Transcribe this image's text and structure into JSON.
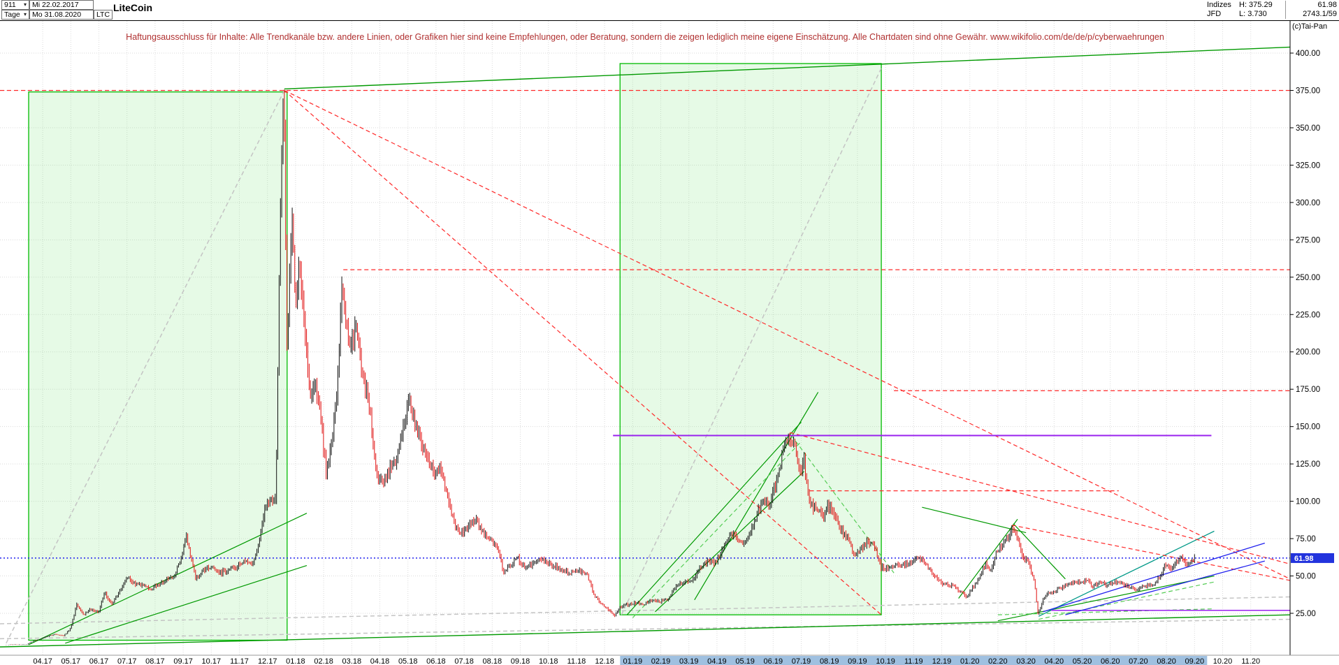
{
  "toolbar": {
    "bars_count": "911",
    "start_date": "Mi 22.02.2017",
    "period": "Tage",
    "end_date": "Mo 31.08.2020",
    "symbol": "LTC",
    "title": "LiteCoin"
  },
  "quote": {
    "exchange": "Indizes",
    "high": "H: 375.29",
    "last": "61.98",
    "broker": "JFD",
    "low": "L: 3.730",
    "volume": "2743.1/59"
  },
  "disclaimer": "Haftungsausschluss für Inhalte: Alle Trendkanäle bzw. andere Linien, oder Grafiken hier sind keine Empfehlungen, oder Beratung, sondern die zeigen lediglich meine eigene Einschätzung. Alle Chartdaten sind ohne Gewähr.   www.wikifolio.com/de/de/p/cyberwaehrungen",
  "copyright": "(c)Tai-Pan",
  "chart_data": {
    "type": "candlestick",
    "instrument": "LiteCoin",
    "x_unit": "months_since_2017-04",
    "xlim": [
      -1.52,
      44.4
    ],
    "data_range": [
      -1.3,
      41.0
    ],
    "bars": 911,
    "last_price": 61.98,
    "last_price_label": "61.98",
    "period_high": 375.29,
    "period_low": 3.73,
    "grid": true,
    "x_labels": [
      "04.17",
      "05.17",
      "06.17",
      "07.17",
      "08.17",
      "09.17",
      "10.17",
      "11.17",
      "12.17",
      "01.18",
      "02.18",
      "03.18",
      "04.18",
      "05.18",
      "06.18",
      "07.18",
      "08.18",
      "09.18",
      "10.18",
      "11.18",
      "12.18",
      "01.19",
      "02.19",
      "03.19",
      "04.19",
      "05.19",
      "06.19",
      "07.19",
      "08.19",
      "09.19",
      "10.19",
      "11.19",
      "12.19",
      "01.20",
      "02.20",
      "03.20",
      "04.20",
      "05.20",
      "06.20",
      "07.20",
      "08.20",
      "09.20",
      "10.20",
      "11.20"
    ],
    "x_highlight": {
      "start": "01.19",
      "end": "09.20"
    },
    "y_axis": {
      "ticks": [
        400,
        375,
        350,
        325,
        300,
        275,
        250,
        225,
        200,
        175,
        150,
        125,
        100,
        75,
        50,
        25
      ],
      "labels": [
        "400.00",
        "375.00",
        "350.00",
        "325.00",
        "300.00",
        "275.00",
        "250.00",
        "225.00",
        "200.00",
        "175.00",
        "150.00",
        "125.00",
        "100.00",
        "75.00",
        "50.00",
        "25.00"
      ]
    },
    "price_anchors": [
      [
        -1.3,
        3.8
      ],
      [
        -1.05,
        4.2
      ],
      [
        -0.8,
        4.0
      ],
      [
        -0.55,
        4.4
      ],
      [
        -0.3,
        6.8
      ],
      [
        -0.1,
        7.5
      ],
      [
        0.15,
        9.5
      ],
      [
        0.45,
        11
      ],
      [
        0.75,
        10
      ],
      [
        1.0,
        15
      ],
      [
        1.2,
        31
      ],
      [
        1.45,
        24
      ],
      [
        1.7,
        28
      ],
      [
        2.0,
        26
      ],
      [
        2.2,
        39
      ],
      [
        2.45,
        31
      ],
      [
        2.75,
        40
      ],
      [
        3.0,
        50
      ],
      [
        3.25,
        45
      ],
      [
        3.55,
        44
      ],
      [
        3.85,
        41
      ],
      [
        4.1,
        44
      ],
      [
        4.4,
        47
      ],
      [
        4.7,
        51
      ],
      [
        4.95,
        63
      ],
      [
        5.1,
        78
      ],
      [
        5.3,
        60
      ],
      [
        5.45,
        48
      ],
      [
        5.7,
        54
      ],
      [
        6.0,
        56
      ],
      [
        6.3,
        52
      ],
      [
        6.6,
        54
      ],
      [
        6.9,
        56
      ],
      [
        7.2,
        61
      ],
      [
        7.45,
        57
      ],
      [
        7.7,
        71
      ],
      [
        7.9,
        95
      ],
      [
        8.1,
        100
      ],
      [
        8.3,
        103
      ],
      [
        8.45,
        290
      ],
      [
        8.58,
        375
      ],
      [
        8.7,
        200
      ],
      [
        8.78,
        252
      ],
      [
        8.88,
        285
      ],
      [
        9.0,
        232
      ],
      [
        9.1,
        255
      ],
      [
        9.25,
        238
      ],
      [
        9.4,
        200
      ],
      [
        9.55,
        168
      ],
      [
        9.7,
        180
      ],
      [
        9.85,
        163
      ],
      [
        10.1,
        118
      ],
      [
        10.3,
        142
      ],
      [
        10.5,
        180
      ],
      [
        10.65,
        248
      ],
      [
        10.8,
        215
      ],
      [
        11.0,
        206
      ],
      [
        11.15,
        216
      ],
      [
        11.4,
        185
      ],
      [
        11.65,
        160
      ],
      [
        11.9,
        117
      ],
      [
        12.1,
        112
      ],
      [
        12.35,
        122
      ],
      [
        12.6,
        128
      ],
      [
        12.85,
        150
      ],
      [
        13.05,
        168
      ],
      [
        13.25,
        152
      ],
      [
        13.5,
        138
      ],
      [
        13.75,
        128
      ],
      [
        13.95,
        118
      ],
      [
        14.2,
        121
      ],
      [
        14.45,
        100
      ],
      [
        14.7,
        82
      ],
      [
        14.9,
        79
      ],
      [
        15.15,
        84
      ],
      [
        15.4,
        88
      ],
      [
        15.7,
        78
      ],
      [
        15.95,
        75
      ],
      [
        16.15,
        71
      ],
      [
        16.4,
        53
      ],
      [
        16.65,
        57
      ],
      [
        16.9,
        62
      ],
      [
        17.15,
        56
      ],
      [
        17.45,
        58
      ],
      [
        17.75,
        61
      ],
      [
        17.95,
        59
      ],
      [
        18.2,
        57
      ],
      [
        18.5,
        54
      ],
      [
        18.8,
        52
      ],
      [
        19.1,
        54
      ],
      [
        19.4,
        50
      ],
      [
        19.6,
        38
      ],
      [
        19.85,
        32
      ],
      [
        20.1,
        28
      ],
      [
        20.35,
        23.5
      ],
      [
        20.6,
        30
      ],
      [
        20.85,
        31
      ],
      [
        21.1,
        32
      ],
      [
        21.4,
        31
      ],
      [
        21.7,
        34
      ],
      [
        21.95,
        33
      ],
      [
        22.25,
        34
      ],
      [
        22.55,
        44
      ],
      [
        22.85,
        46
      ],
      [
        23.1,
        47
      ],
      [
        23.4,
        55
      ],
      [
        23.7,
        60
      ],
      [
        23.95,
        59
      ],
      [
        24.2,
        68
      ],
      [
        24.5,
        79
      ],
      [
        24.75,
        74
      ],
      [
        24.95,
        73
      ],
      [
        25.15,
        76
      ],
      [
        25.4,
        89
      ],
      [
        25.65,
        103
      ],
      [
        25.85,
        96
      ],
      [
        26.1,
        112
      ],
      [
        26.35,
        134
      ],
      [
        26.6,
        143
      ],
      [
        26.8,
        134
      ],
      [
        26.95,
        121
      ],
      [
        27.1,
        127
      ],
      [
        27.3,
        99
      ],
      [
        27.55,
        94
      ],
      [
        27.8,
        90
      ],
      [
        27.95,
        97
      ],
      [
        28.15,
        92
      ],
      [
        28.4,
        81
      ],
      [
        28.65,
        75
      ],
      [
        28.9,
        64
      ],
      [
        29.1,
        67
      ],
      [
        29.35,
        73
      ],
      [
        29.6,
        70
      ],
      [
        29.85,
        56
      ],
      [
        30.1,
        55
      ],
      [
        30.4,
        57
      ],
      [
        30.7,
        58
      ],
      [
        30.95,
        59
      ],
      [
        31.2,
        62
      ],
      [
        31.45,
        58
      ],
      [
        31.7,
        50
      ],
      [
        31.95,
        46
      ],
      [
        32.2,
        44
      ],
      [
        32.45,
        43
      ],
      [
        32.7,
        39
      ],
      [
        32.9,
        36
      ],
      [
        33.1,
        42
      ],
      [
        33.35,
        50
      ],
      [
        33.55,
        58
      ],
      [
        33.75,
        54
      ],
      [
        33.95,
        66
      ],
      [
        34.15,
        70
      ],
      [
        34.35,
        76
      ],
      [
        34.5,
        83
      ],
      [
        34.7,
        74
      ],
      [
        34.9,
        61
      ],
      [
        35.1,
        60
      ],
      [
        35.3,
        46
      ],
      [
        35.42,
        24
      ],
      [
        35.6,
        34
      ],
      [
        35.8,
        39
      ],
      [
        35.95,
        39
      ],
      [
        36.2,
        42
      ],
      [
        36.5,
        45
      ],
      [
        36.8,
        46
      ],
      [
        36.95,
        45
      ],
      [
        37.15,
        48
      ],
      [
        37.35,
        43
      ],
      [
        37.6,
        46
      ],
      [
        37.85,
        44
      ],
      [
        38.1,
        46
      ],
      [
        38.4,
        45
      ],
      [
        38.7,
        42
      ],
      [
        38.95,
        41
      ],
      [
        39.2,
        44
      ],
      [
        39.5,
        43
      ],
      [
        39.75,
        49
      ],
      [
        39.95,
        57
      ],
      [
        40.15,
        55
      ],
      [
        40.35,
        59
      ],
      [
        40.55,
        63
      ],
      [
        40.75,
        57
      ],
      [
        40.9,
        60
      ],
      [
        41.0,
        61.98
      ]
    ],
    "overlays": {
      "boxes": [
        {
          "x1": -0.5,
          "p1": 7,
          "x2": 8.7,
          "p2": 374
        },
        {
          "x1": 20.55,
          "p1": 24,
          "x2": 29.85,
          "p2": 393
        }
      ],
      "lines": [
        {
          "x1": -1.3,
          "p1": 5,
          "x2": 8.6,
          "p2": 375,
          "c": "gray",
          "d": "dash",
          "w": 1.5
        },
        {
          "x1": 20.6,
          "p1": 24,
          "x2": 29.85,
          "p2": 390,
          "c": "gray",
          "d": "dash",
          "w": 1.5
        },
        {
          "x1": -1.52,
          "p1": 18,
          "x2": 44.4,
          "p2": 36,
          "c": "gray",
          "d": "dash",
          "w": 1.5
        },
        {
          "x1": -1.52,
          "p1": 8,
          "x2": 44.4,
          "p2": 21,
          "c": "gray",
          "d": "dash",
          "w": 1.5
        },
        {
          "x1": 8.6,
          "p1": 376,
          "x2": 44.4,
          "p2": 404,
          "c": "green",
          "w": 1.4
        },
        {
          "x1": -1.52,
          "p1": 2.5,
          "x2": 44.4,
          "p2": 24,
          "c": "green",
          "w": 1.4
        },
        {
          "x1": -0.5,
          "p1": 4,
          "x2": 9.4,
          "p2": 92,
          "c": "green",
          "w": 1.2
        },
        {
          "x1": 0.8,
          "p1": 5,
          "x2": 9.4,
          "p2": 57,
          "c": "green",
          "w": 1.2
        },
        {
          "x1": 20.8,
          "p1": 24,
          "x2": 27.0,
          "p2": 153,
          "c": "green",
          "w": 1.2
        },
        {
          "x1": 21.8,
          "p1": 26,
          "x2": 27.1,
          "p2": 120,
          "c": "green",
          "w": 1.2
        },
        {
          "x1": 23.2,
          "p1": 34,
          "x2": 27.6,
          "p2": 173,
          "c": "green",
          "w": 1.2
        },
        {
          "x1": 32.6,
          "p1": 35,
          "x2": 34.7,
          "p2": 88,
          "c": "green",
          "w": 1.2
        },
        {
          "x1": 31.3,
          "p1": 96,
          "x2": 35.0,
          "p2": 79,
          "c": "green",
          "w": 1.2
        },
        {
          "x1": 34.55,
          "p1": 85,
          "x2": 36.4,
          "p2": 48,
          "c": "green",
          "w": 1.2
        },
        {
          "x1": 34.0,
          "p1": 20,
          "x2": 41.7,
          "p2": 50,
          "c": "green",
          "w": 1.2
        },
        {
          "x1": 35.45,
          "p1": 23,
          "x2": 41.7,
          "p2": 80,
          "c": "teal",
          "w": 1.3
        },
        {
          "x1": 26.65,
          "p1": 144,
          "x2": 30.3,
          "p2": 52,
          "c": "green_light",
          "d": "dash",
          "w": 1.2
        },
        {
          "x1": 21.0,
          "p1": 22,
          "x2": 27.0,
          "p2": 140,
          "c": "green_light",
          "d": "dash",
          "w": 1.2
        },
        {
          "x1": 35.45,
          "p1": 21,
          "x2": 41.7,
          "p2": 46,
          "c": "green_light",
          "d": "dash",
          "w": 1.2
        },
        {
          "x1": 34.0,
          "p1": 24,
          "x2": 41.7,
          "p2": 28,
          "c": "green_light",
          "d": "dash",
          "w": 1.2
        },
        {
          "x1": -1.52,
          "p1": 375,
          "x2": 44.4,
          "p2": 375,
          "c": "red",
          "d": "dash",
          "w": 1.2
        },
        {
          "x1": 10.7,
          "p1": 255,
          "x2": 44.4,
          "p2": 255,
          "c": "red",
          "d": "dash",
          "w": 1.2
        },
        {
          "x1": 30.3,
          "p1": 174,
          "x2": 44.4,
          "p2": 174,
          "c": "red",
          "d": "dash",
          "w": 1.2
        },
        {
          "x1": 8.6,
          "p1": 375,
          "x2": 29.85,
          "p2": 24,
          "c": "red",
          "d": "dash",
          "w": 1.2
        },
        {
          "x1": 8.6,
          "p1": 375,
          "x2": 44.4,
          "p2": 48,
          "c": "red",
          "d": "dash",
          "w": 1.2
        },
        {
          "x1": 26.6,
          "p1": 146,
          "x2": 44.4,
          "p2": 58,
          "c": "red",
          "d": "dash",
          "w": 1.2
        },
        {
          "x1": 34.5,
          "p1": 84,
          "x2": 44.4,
          "p2": 47,
          "c": "red",
          "d": "dash",
          "w": 1.2
        },
        {
          "x1": 27.3,
          "p1": 107,
          "x2": 38.3,
          "p2": 107,
          "c": "red",
          "d": "dash",
          "w": 1.2
        },
        {
          "x1": 20.3,
          "p1": 144,
          "x2": 41.6,
          "p2": 144,
          "c": "violet",
          "w": 2
        },
        {
          "x1": 35.9,
          "p1": 27,
          "x2": 44.4,
          "p2": 27,
          "c": "violet",
          "w": 1.5
        },
        {
          "x1": 35.6,
          "p1": 26,
          "x2": 43.5,
          "p2": 72,
          "c": "blue",
          "w": 1.3
        },
        {
          "x1": 36.4,
          "p1": 24,
          "x2": 43.5,
          "p2": 60,
          "c": "blue",
          "w": 1.3
        },
        {
          "x1": -1.52,
          "p1": 61.98,
          "x2": 44.4,
          "p2": 61.98,
          "c": "blue",
          "d": "dot",
          "w": 1.5
        }
      ]
    },
    "palette": {
      "green": "#009900",
      "green_light": "#55cc55",
      "red": "#ff2a2a",
      "blue": "#2222ee",
      "violet": "#9922ee",
      "gray": "#c4c4c4",
      "teal": "#009988",
      "candle_up": "#111111",
      "candle_down": "#e01010",
      "box_fill": "rgba(140,230,140,0.22)",
      "box_stroke": "#00bb00",
      "grid": "#dadada",
      "highlight_band": "#9fc0e0",
      "badge_bg": "#2233dd"
    }
  }
}
